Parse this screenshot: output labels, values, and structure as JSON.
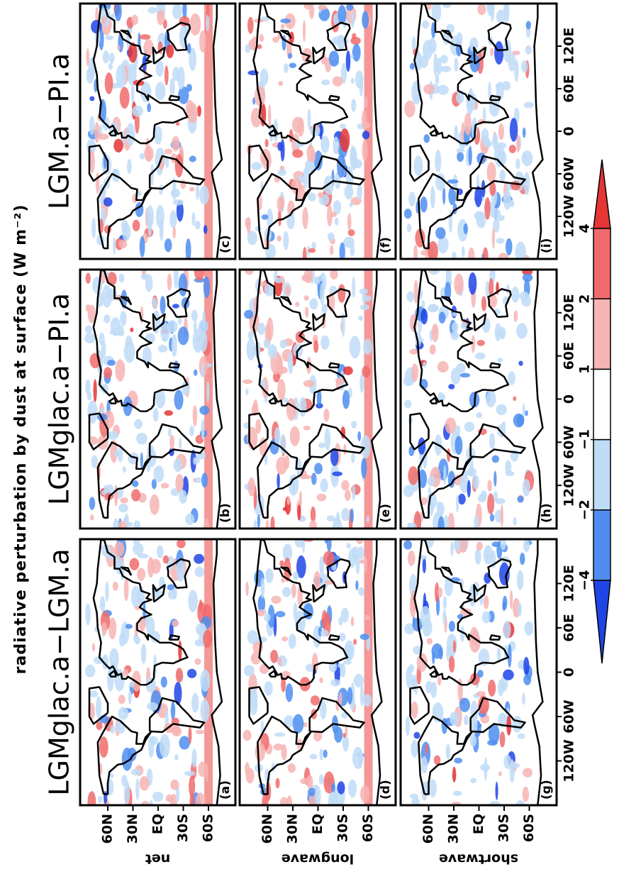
{
  "chart_data": {
    "type": "map",
    "title": "radiative perturbation by dust at surface (W m⁻²)",
    "columns": [
      "LGMglac.a−LGM.a",
      "LGMglac.a−PI.a",
      "LGM.a−PI.a"
    ],
    "rows": [
      "net",
      "longwave",
      "shortwave"
    ],
    "panel_labels": [
      "(a)",
      "(b)",
      "(c)",
      "(d)",
      "(e)",
      "(f)",
      "(g)",
      "(h)",
      "(i)"
    ],
    "xlim": [
      -180,
      180
    ],
    "ylim": [
      -90,
      90
    ],
    "xticks": [
      {
        "value": -120,
        "label": "120W"
      },
      {
        "value": -60,
        "label": "60W"
      },
      0,
      {
        "value": 60,
        "label": "60E"
      },
      {
        "value": 120,
        "label": "120E"
      }
    ],
    "yticks": [
      {
        "value": 60,
        "label": "60N"
      },
      {
        "value": 30,
        "label": "30N"
      },
      {
        "value": 0,
        "label": "EQ"
      },
      {
        "value": -30,
        "label": "30S"
      },
      {
        "value": -60,
        "label": "60S"
      }
    ],
    "colorbar": {
      "ticks": [
        {
          "value": -4,
          "label": "−4"
        },
        {
          "value": -2,
          "label": "−2"
        },
        {
          "value": -1,
          "label": "−1"
        },
        1,
        2,
        4
      ],
      "colors": [
        "#1f45e6",
        "#4f8ef0",
        "#bfdcf7",
        "#ffffff",
        "#f7b4b4",
        "#f06b6b",
        "#e53535"
      ]
    }
  }
}
